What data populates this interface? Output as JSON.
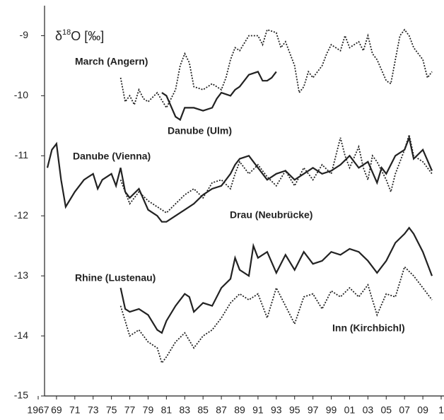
{
  "chart_data": {
    "type": "line",
    "ylabel": [
      "δ",
      "18",
      "O  [‰]"
    ],
    "xlim": [
      1967,
      2011
    ],
    "ylim": [
      -15,
      -8.5
    ],
    "yticks": [
      -15,
      -14,
      -13,
      -12,
      -11,
      -10,
      -9
    ],
    "xticks": [
      1967,
      {
        "value": 1969,
        "label": "69"
      },
      {
        "value": 1971,
        "label": "71"
      },
      {
        "value": 1973,
        "label": "73"
      },
      {
        "value": 1975,
        "label": "75"
      },
      {
        "value": 1977,
        "label": "77"
      },
      {
        "value": 1979,
        "label": "79"
      },
      {
        "value": 1981,
        "label": "81"
      },
      {
        "value": 1983,
        "label": "83"
      },
      {
        "value": 1985,
        "label": "85"
      },
      {
        "value": 1987,
        "label": "87"
      },
      {
        "value": 1989,
        "label": "89"
      },
      {
        "value": 1991,
        "label": "91"
      },
      {
        "value": 1993,
        "label": "93"
      },
      {
        "value": 1995,
        "label": "95"
      },
      {
        "value": 1997,
        "label": "97"
      },
      {
        "value": 1999,
        "label": "99"
      },
      {
        "value": 2001,
        "label": "01"
      },
      {
        "value": 2003,
        "label": "03"
      },
      {
        "value": 2005,
        "label": "05"
      },
      {
        "value": 2007,
        "label": "07"
      },
      {
        "value": 2009,
        "label": "09"
      },
      {
        "value": 2011,
        "label": "1"
      }
    ],
    "series": [
      {
        "name": "March (Angern)",
        "color": "#222222",
        "style": "dotted",
        "x": [
          1976,
          1976.5,
          1977,
          1977.5,
          1978,
          1978.5,
          1979,
          1980,
          1981,
          1982,
          1982.5,
          1983,
          1983.5,
          1984,
          1985,
          1986,
          1987,
          1987.5,
          1988,
          1988.5,
          1989,
          1990,
          1991,
          1991.5,
          1992,
          1993,
          1993.5,
          1994,
          1995,
          1995.5,
          1996,
          1996.5,
          1997,
          1998,
          1998.5,
          1999,
          2000,
          2000.5,
          2001,
          2002,
          2002.5,
          2003,
          2003.5,
          2004,
          2005,
          2005.5,
          2006,
          2006.5,
          2007,
          2007.5,
          2008,
          2009,
          2009.5,
          2010
        ],
        "values": [
          -9.7,
          -10.1,
          -10.0,
          -10.15,
          -9.9,
          -10.05,
          -10.1,
          -9.95,
          -10.2,
          -9.9,
          -9.5,
          -9.3,
          -9.45,
          -9.85,
          -9.9,
          -9.8,
          -9.9,
          -9.7,
          -9.4,
          -9.2,
          -9.25,
          -9.0,
          -9.0,
          -9.15,
          -8.9,
          -8.95,
          -9.2,
          -9.1,
          -9.5,
          -9.95,
          -9.85,
          -9.6,
          -9.7,
          -9.5,
          -9.3,
          -9.15,
          -9.25,
          -9.0,
          -9.2,
          -9.1,
          -9.25,
          -9.0,
          -9.3,
          -9.4,
          -9.75,
          -9.8,
          -9.4,
          -9.0,
          -8.9,
          -9.0,
          -9.2,
          -9.4,
          -9.7,
          -9.6
        ]
      },
      {
        "name": "Danube (Ulm)",
        "color": "#222222",
        "style": "solid",
        "x": [
          1980.5,
          1981,
          1982,
          1982.5,
          1983,
          1984,
          1985,
          1986,
          1986.5,
          1987,
          1988,
          1988.5,
          1989,
          1990,
          1991,
          1991.5,
          1992,
          1992.5,
          1993
        ],
        "values": [
          -9.95,
          -10.0,
          -10.35,
          -10.4,
          -10.2,
          -10.2,
          -10.25,
          -10.2,
          -10.05,
          -9.95,
          -10.0,
          -9.9,
          -9.85,
          -9.65,
          -9.6,
          -9.75,
          -9.75,
          -9.7,
          -9.6
        ]
      },
      {
        "name": "Danube (Vienna)",
        "color": "#222222",
        "style": "solid",
        "x": [
          1968,
          1968.5,
          1969,
          1969.5,
          1970,
          1971,
          1972,
          1973,
          1973.5,
          1974,
          1975,
          1975.5,
          1976,
          1976.5,
          1977,
          1978,
          1979,
          1980,
          1980.5,
          1981,
          1982,
          1983,
          1984,
          1985,
          1986,
          1987,
          1988,
          1988.5,
          1989,
          1990,
          1991,
          1992,
          1993,
          1994,
          1995,
          1996,
          1997,
          1998,
          1999,
          2000,
          2001,
          2002,
          2003,
          2004,
          2004.5,
          2005,
          2006,
          2007,
          2007.5,
          2008,
          2009,
          2010
        ],
        "values": [
          -11.2,
          -10.9,
          -10.8,
          -11.4,
          -11.85,
          -11.6,
          -11.4,
          -11.3,
          -11.55,
          -11.4,
          -11.3,
          -11.5,
          -11.2,
          -11.6,
          -11.7,
          -11.55,
          -11.9,
          -12.0,
          -12.1,
          -12.1,
          -12.0,
          -11.9,
          -11.8,
          -11.65,
          -11.55,
          -11.5,
          -11.3,
          -11.15,
          -11.05,
          -11.0,
          -11.2,
          -11.4,
          -11.3,
          -11.25,
          -11.4,
          -11.3,
          -11.2,
          -11.3,
          -11.25,
          -11.15,
          -11.0,
          -11.2,
          -11.1,
          -11.45,
          -11.2,
          -11.3,
          -11.0,
          -10.9,
          -10.7,
          -11.05,
          -10.9,
          -11.25
        ]
      },
      {
        "name": "Drau (Neubrücke)",
        "color": "#222222",
        "style": "dotted",
        "x": [
          1976,
          1977,
          1978,
          1979,
          1980,
          1981,
          1982,
          1983,
          1984,
          1985,
          1986,
          1987,
          1988,
          1988.5,
          1989,
          1990,
          1991,
          1992,
          1993,
          1994,
          1995,
          1996,
          1997,
          1998,
          1999,
          2000,
          2000.5,
          2001,
          2002,
          2002.5,
          2003,
          2003.5,
          2004,
          2005,
          2005.5,
          2006,
          2007,
          2007.5,
          2008,
          2009,
          2010
        ],
        "values": [
          -11.4,
          -11.8,
          -11.6,
          -11.75,
          -11.85,
          -11.95,
          -11.8,
          -11.65,
          -11.55,
          -11.7,
          -11.45,
          -11.4,
          -11.55,
          -11.3,
          -11.1,
          -11.3,
          -11.15,
          -11.35,
          -11.5,
          -11.25,
          -11.5,
          -11.2,
          -11.4,
          -11.15,
          -11.3,
          -10.7,
          -11.0,
          -11.2,
          -10.85,
          -11.2,
          -11.4,
          -11.0,
          -11.1,
          -11.4,
          -11.6,
          -11.3,
          -10.9,
          -10.65,
          -11.0,
          -11.1,
          -11.3
        ]
      },
      {
        "name": "Rhine (Lustenau)",
        "color": "#222222",
        "style": "solid",
        "x": [
          1976,
          1976.5,
          1977,
          1978,
          1979,
          1980,
          1980.5,
          1981,
          1982,
          1983,
          1983.5,
          1984,
          1985,
          1986,
          1987,
          1988,
          1988.5,
          1989,
          1990,
          1990.5,
          1991,
          1992,
          1993,
          1994,
          1995,
          1996,
          1997,
          1998,
          1999,
          2000,
          2001,
          2002,
          2003,
          2004,
          2005,
          2006,
          2007,
          2007.5,
          2008,
          2009,
          2010
        ],
        "values": [
          -13.2,
          -13.55,
          -13.6,
          -13.55,
          -13.65,
          -13.9,
          -13.95,
          -13.75,
          -13.5,
          -13.3,
          -13.35,
          -13.6,
          -13.45,
          -13.5,
          -13.2,
          -13.05,
          -12.7,
          -12.9,
          -13.0,
          -12.5,
          -12.7,
          -12.6,
          -12.95,
          -12.65,
          -12.9,
          -12.6,
          -12.8,
          -12.75,
          -12.6,
          -12.65,
          -12.55,
          -12.6,
          -12.75,
          -12.95,
          -12.75,
          -12.45,
          -12.3,
          -12.2,
          -12.3,
          -12.6,
          -13.0
        ]
      },
      {
        "name": "Inn (Kirchbichl)",
        "color": "#222222",
        "style": "dotted",
        "x": [
          1976,
          1977,
          1978,
          1979,
          1980,
          1980.5,
          1981,
          1982,
          1983,
          1984,
          1985,
          1986,
          1987,
          1988,
          1989,
          1990,
          1991,
          1992,
          1993,
          1994,
          1995,
          1996,
          1997,
          1998,
          1999,
          2000,
          2001,
          2002,
          2003,
          2004,
          2005,
          2006,
          2007,
          2008,
          2009,
          2010
        ],
        "values": [
          -13.5,
          -14.0,
          -13.9,
          -14.1,
          -14.2,
          -14.45,
          -14.35,
          -14.1,
          -13.95,
          -14.2,
          -14.0,
          -13.9,
          -13.7,
          -13.45,
          -13.3,
          -13.4,
          -13.3,
          -13.7,
          -13.2,
          -13.5,
          -13.8,
          -13.35,
          -13.3,
          -13.55,
          -13.25,
          -13.35,
          -13.2,
          -13.35,
          -13.15,
          -13.65,
          -13.3,
          -13.35,
          -12.85,
          -13.0,
          -13.2,
          -13.4
        ]
      }
    ]
  }
}
